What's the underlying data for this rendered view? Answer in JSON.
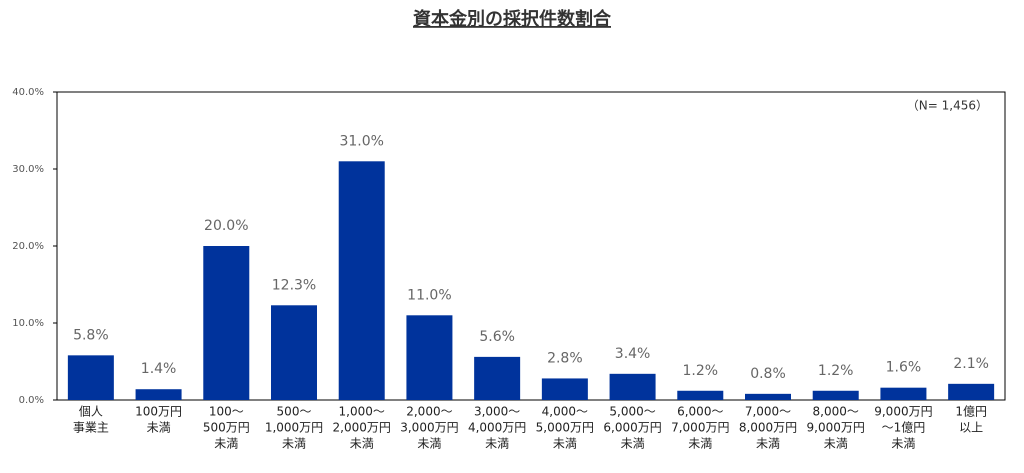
{
  "chart_data": {
    "type": "bar",
    "title": "資本金別の採択件数割合",
    "annotation": "（N= 1,456）",
    "categories": [
      [
        "個人",
        "事業主"
      ],
      [
        "100万円",
        "未満"
      ],
      [
        "100～",
        "500万円",
        "未満"
      ],
      [
        "500～",
        "1,000万円",
        "未満"
      ],
      [
        "1,000～",
        "2,000万円",
        "未満"
      ],
      [
        "2,000～",
        "3,000万円",
        "未満"
      ],
      [
        "3,000～",
        "4,000万円",
        "未満"
      ],
      [
        "4,000～",
        "5,000万円",
        "未満"
      ],
      [
        "5,000～",
        "6,000万円",
        "未満"
      ],
      [
        "6,000～",
        "7,000万円",
        "未満"
      ],
      [
        "7,000～",
        "8,000万円",
        "未満"
      ],
      [
        "8,000～",
        "9,000万円",
        "未満"
      ],
      [
        "9,000万円",
        "～1億円",
        "未満"
      ],
      [
        "1億円",
        "以上"
      ]
    ],
    "values": [
      5.8,
      1.4,
      20.0,
      12.3,
      31.0,
      11.0,
      5.6,
      2.8,
      3.4,
      1.2,
      0.8,
      1.2,
      1.6,
      2.1
    ],
    "value_labels": [
      "5.8%",
      "1.4%",
      "20.0%",
      "12.3%",
      "31.0%",
      "11.0%",
      "5.6%",
      "2.8%",
      "3.4%",
      "1.2%",
      "0.8%",
      "1.2%",
      "1.6%",
      "2.1%"
    ],
    "color": "#00339c",
    "ylim": [
      0,
      40
    ],
    "yticks": [
      {
        "value": 0,
        "label": "0.0%"
      },
      {
        "value": 10,
        "label": "10.0%"
      },
      {
        "value": 20,
        "label": "20.0%"
      },
      {
        "value": 30,
        "label": "30.0%"
      },
      {
        "value": 40,
        "label": "40.0%"
      }
    ],
    "grid": false
  }
}
